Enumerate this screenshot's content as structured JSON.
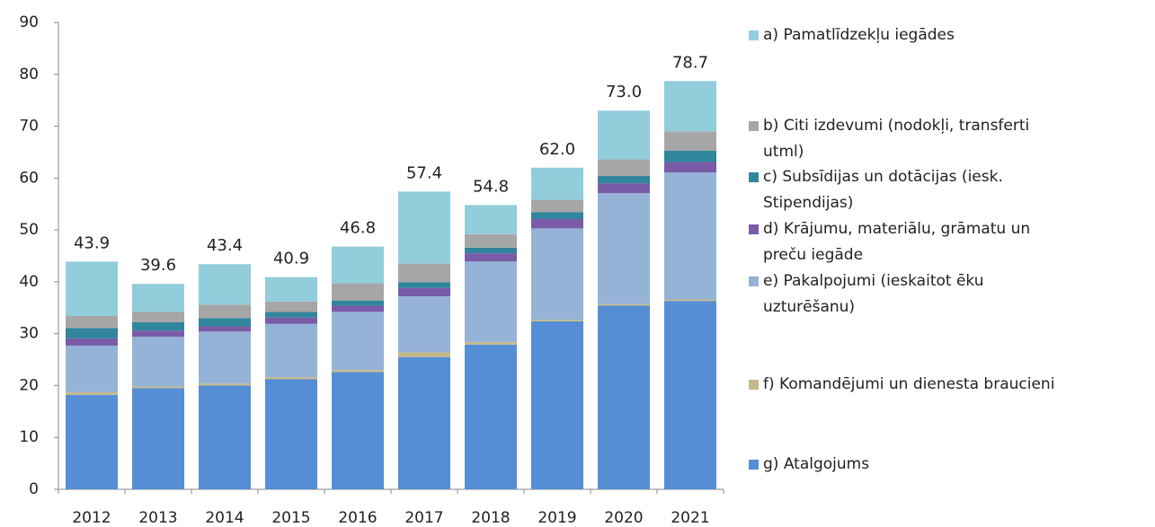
{
  "chart_data": {
    "type": "stacked-bar",
    "categories": [
      "2012",
      "2013",
      "2014",
      "2015",
      "2016",
      "2017",
      "2018",
      "2019",
      "2020",
      "2021"
    ],
    "series": [
      {
        "name": "a) Pamatlīdzekļu iegādes",
        "color": "#92cddc",
        "values": [
          10.5,
          5.4,
          7.8,
          4.7,
          7.1,
          13.9,
          5.6,
          6.2,
          9.4,
          9.7
        ]
      },
      {
        "name": "b) Citi izdevumi  (nodokļi, transferti utml)",
        "color": "#a6a6a6",
        "values": [
          2.3,
          2.0,
          2.6,
          2.0,
          3.3,
          3.6,
          2.6,
          2.4,
          3.2,
          3.7
        ]
      },
      {
        "name": "c) Subsīdijas un dotācijas (iesk. Stipendijas)",
        "color": "#31859c",
        "values": [
          2.0,
          1.6,
          1.6,
          1.1,
          1.0,
          1.1,
          1.1,
          1.3,
          1.4,
          2.2
        ]
      },
      {
        "name": "d) Krājumu, materiālu, grāmatu un preču iegāde",
        "color": "#7a5ba8",
        "values": [
          1.4,
          1.2,
          1.0,
          1.2,
          1.2,
          1.6,
          1.6,
          1.8,
          1.9,
          2.0
        ]
      },
      {
        "name": "e) Pakalpojumi (ieskaitot ēku uzturēšanu)",
        "color": "#95b3d7",
        "values": [
          9.0,
          9.6,
          10.0,
          10.3,
          11.2,
          10.8,
          15.5,
          17.6,
          21.4,
          24.5
        ]
      },
      {
        "name": "f) Komandējumi un dienesta braucieni",
        "color": "#c4b98b",
        "values": [
          0.5,
          0.3,
          0.4,
          0.4,
          0.4,
          0.9,
          0.5,
          0.3,
          0.3,
          0.3
        ]
      },
      {
        "name": "g) Atalgojums",
        "color": "#558ed5",
        "values": [
          18.2,
          19.5,
          20.0,
          21.2,
          22.6,
          25.5,
          27.9,
          32.4,
          35.4,
          36.3
        ]
      }
    ],
    "totals": [
      43.9,
      39.6,
      43.4,
      40.9,
      46.8,
      57.4,
      54.8,
      62.0,
      73.0,
      78.7
    ],
    "total_labels": [
      "43.9",
      "39.6",
      "43.4",
      "40.9",
      "46.8",
      "57.4",
      "54.8",
      "62.0",
      "73.0",
      "78.7"
    ],
    "ylim": [
      0,
      90
    ],
    "yticks": [
      0,
      10,
      20,
      30,
      40,
      50,
      60,
      70,
      80,
      90
    ],
    "grid": false
  }
}
